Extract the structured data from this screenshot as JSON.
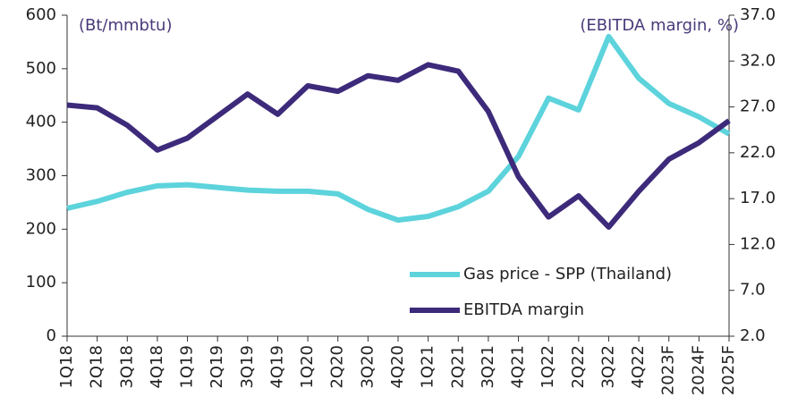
{
  "chart_data": {
    "type": "line",
    "ylabel": "(Bt/mmbtu)",
    "y2label": "(EBITDA margin, %)",
    "categories": [
      "1Q18",
      "2Q18",
      "3Q18",
      "4Q18",
      "1Q19",
      "2Q19",
      "3Q19",
      "4Q19",
      "1Q20",
      "2Q20",
      "3Q20",
      "4Q20",
      "1Q21",
      "2Q21",
      "3Q21",
      "4Q21",
      "1Q22",
      "2Q22",
      "3Q22",
      "4Q22",
      "2023F",
      "2024F",
      "2025F"
    ],
    "series": [
      {
        "name": "Gas price - SPP (Thailand)",
        "color": "#5dd3dc",
        "axis": "y",
        "values": [
          239,
          252,
          269,
          281,
          283,
          278,
          273,
          271,
          271,
          266,
          237,
          217,
          224,
          242,
          271,
          336,
          445,
          423,
          560,
          482,
          435,
          410,
          378
        ]
      },
      {
        "name": "EBITDA margin",
        "color": "#3d2a7a",
        "axis": "y2",
        "values": [
          27.2,
          26.9,
          25.0,
          22.3,
          23.6,
          26.0,
          28.4,
          26.2,
          29.3,
          28.7,
          30.4,
          29.9,
          31.6,
          30.9,
          26.5,
          19.4,
          15.0,
          17.3,
          13.9,
          17.8,
          21.3,
          23.1,
          25.5
        ]
      }
    ],
    "ylim": [
      0,
      600
    ],
    "yticks": [
      0,
      100,
      200,
      300,
      400,
      500,
      600
    ],
    "y2lim": [
      2,
      37
    ],
    "y2ticks": [
      {
        "value": 2,
        "label": "2.0"
      },
      {
        "value": 7,
        "label": "7.0"
      },
      {
        "value": 12,
        "label": "12.0"
      },
      {
        "value": 17,
        "label": "17.0"
      },
      {
        "value": 22,
        "label": "22.0"
      },
      {
        "value": 27,
        "label": "27.0"
      },
      {
        "value": 32,
        "label": "32.0"
      },
      {
        "value": 37,
        "label": "37.0"
      }
    ],
    "legend": "lower right"
  }
}
